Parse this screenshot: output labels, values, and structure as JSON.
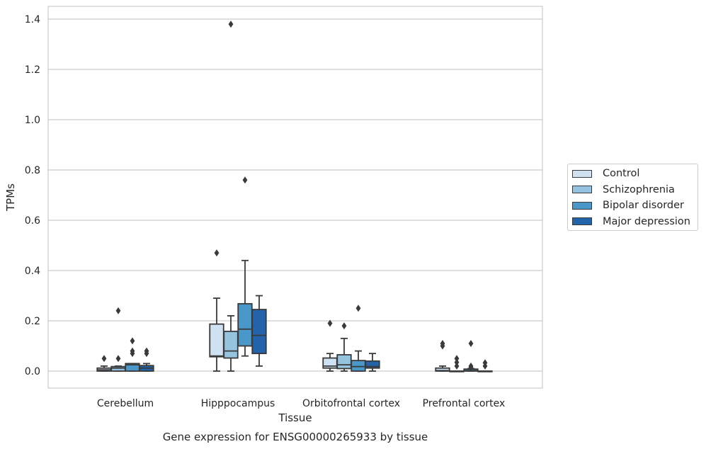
{
  "chart_data": {
    "type": "box",
    "title": "",
    "caption": "Gene expression for ENSG00000265933 by tissue",
    "xlabel": "Tissue",
    "ylabel": "TPMs",
    "ylim": [
      -0.065,
      1.45
    ],
    "yticks": [
      "0.0",
      "0.2",
      "0.4",
      "0.6",
      "0.8",
      "1.0",
      "1.2",
      "1.4"
    ],
    "grid": true,
    "legend_position": "right",
    "categories": [
      "Cerebellum",
      "Hipppocampus",
      "Orbitofrontal cortex",
      "Prefrontal cortex"
    ],
    "series": [
      {
        "name": "Control",
        "color": "#d0e1f2",
        "boxes": [
          {
            "whislo": 0.0,
            "q1": 0.0,
            "med": 0.005,
            "q3": 0.012,
            "whishi": 0.02,
            "fliers": [
              0.05
            ]
          },
          {
            "whislo": 0.0,
            "q1": 0.057,
            "med": 0.06,
            "q3": 0.187,
            "whishi": 0.29,
            "fliers": [
              0.47
            ]
          },
          {
            "whislo": 0.0,
            "q1": 0.012,
            "med": 0.02,
            "q3": 0.052,
            "whishi": 0.07,
            "fliers": [
              0.19
            ]
          },
          {
            "whislo": 0.0,
            "q1": 0.0,
            "med": 0.002,
            "q3": 0.012,
            "whishi": 0.02,
            "fliers": [
              0.1,
              0.11
            ]
          }
        ]
      },
      {
        "name": "Schizophrenia",
        "color": "#94c4df",
        "boxes": [
          {
            "whislo": 0.0,
            "q1": 0.0,
            "med": 0.012,
            "q3": 0.018,
            "whishi": 0.02,
            "fliers": [
              0.05,
              0.24
            ]
          },
          {
            "whislo": 0.0,
            "q1": 0.052,
            "med": 0.08,
            "q3": 0.158,
            "whishi": 0.22,
            "fliers": [
              1.38
            ]
          },
          {
            "whislo": 0.0,
            "q1": 0.01,
            "med": 0.025,
            "q3": 0.065,
            "whishi": 0.13,
            "fliers": [
              0.18
            ]
          },
          {
            "whislo": 0.0,
            "q1": 0.0,
            "med": 0.0,
            "q3": 0.0,
            "whishi": 0.0,
            "fliers": [
              0.02,
              0.035,
              0.05
            ]
          }
        ]
      },
      {
        "name": "Bipolar disorder",
        "color": "#4a98c9",
        "boxes": [
          {
            "whislo": 0.0,
            "q1": 0.0,
            "med": 0.025,
            "q3": 0.03,
            "whishi": 0.03,
            "fliers": [
              0.07,
              0.08,
              0.12
            ]
          },
          {
            "whislo": 0.06,
            "q1": 0.1,
            "med": 0.167,
            "q3": 0.268,
            "whishi": 0.44,
            "fliers": [
              0.76
            ]
          },
          {
            "whislo": 0.0,
            "q1": 0.0,
            "med": 0.018,
            "q3": 0.042,
            "whishi": 0.08,
            "fliers": [
              0.25
            ]
          },
          {
            "whislo": 0.0,
            "q1": 0.0,
            "med": 0.002,
            "q3": 0.008,
            "whishi": 0.01,
            "fliers": [
              0.015,
              0.02,
              0.11
            ]
          }
        ]
      },
      {
        "name": "Major depression",
        "color": "#2363a9",
        "boxes": [
          {
            "whislo": 0.0,
            "q1": 0.0,
            "med": 0.012,
            "q3": 0.022,
            "whishi": 0.03,
            "fliers": [
              0.07,
              0.08
            ]
          },
          {
            "whislo": 0.02,
            "q1": 0.07,
            "med": 0.142,
            "q3": 0.245,
            "whishi": 0.3,
            "fliers": []
          },
          {
            "whislo": 0.0,
            "q1": 0.012,
            "med": 0.018,
            "q3": 0.04,
            "whishi": 0.07,
            "fliers": []
          },
          {
            "whislo": 0.0,
            "q1": 0.0,
            "med": 0.0,
            "q3": 0.0,
            "whishi": 0.0,
            "fliers": [
              0.02,
              0.033
            ]
          }
        ]
      }
    ]
  }
}
